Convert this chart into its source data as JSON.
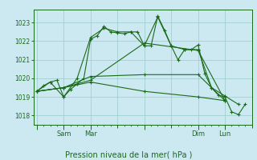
{
  "background_color": "#cce8f0",
  "grid_color": "#99cccc",
  "line_color": "#1a6b1a",
  "marker_color": "#1a6b1a",
  "ylim": [
    1017.5,
    1023.7
  ],
  "y_ticks": [
    1018,
    1019,
    1020,
    1021,
    1022,
    1023
  ],
  "xlabel": "Pression niveau de la mer( hPa )",
  "x_day_labels": [
    "",
    "Sam",
    "Mar",
    "",
    "Dim",
    "Lun"
  ],
  "series": [
    {
      "x": [
        0,
        6,
        12,
        18,
        24,
        30,
        36,
        42,
        48,
        54,
        60,
        66,
        72,
        78,
        84,
        90,
        96,
        102,
        108,
        114,
        120,
        126,
        132,
        138,
        144,
        150,
        156,
        162,
        168,
        174,
        180,
        186
      ],
      "y": [
        1019.3,
        1019.6,
        1019.8,
        1019.9,
        1019.0,
        1019.4,
        1019.7,
        1020.0,
        1022.1,
        1022.3,
        1022.8,
        1022.5,
        1022.45,
        1022.4,
        1022.5,
        1022.5,
        1021.75,
        1021.75,
        1023.35,
        1022.6,
        1021.75,
        1021.0,
        1021.55,
        1021.55,
        1021.8,
        1020.25,
        1019.5,
        1019.1,
        1019.0,
        1018.2,
        1018.05,
        1018.6
      ]
    },
    {
      "x": [
        0,
        12,
        24,
        36,
        48,
        60,
        72,
        84,
        96,
        108,
        120,
        132,
        144,
        156,
        168,
        180
      ],
      "y": [
        1019.3,
        1019.8,
        1019.0,
        1020.0,
        1022.2,
        1022.7,
        1022.5,
        1022.5,
        1021.75,
        1023.3,
        1021.75,
        1021.55,
        1021.55,
        1019.5,
        1019.05,
        1018.6
      ]
    },
    {
      "x": [
        0,
        24,
        48,
        96,
        144,
        168
      ],
      "y": [
        1019.3,
        1019.5,
        1019.9,
        1021.9,
        1021.5,
        1018.8
      ]
    },
    {
      "x": [
        0,
        24,
        48,
        96,
        144,
        168
      ],
      "y": [
        1019.3,
        1019.5,
        1020.1,
        1020.2,
        1020.2,
        1018.8
      ]
    },
    {
      "x": [
        0,
        24,
        48,
        96,
        144,
        168
      ],
      "y": [
        1019.3,
        1019.5,
        1019.8,
        1019.3,
        1019.0,
        1018.8
      ]
    }
  ]
}
